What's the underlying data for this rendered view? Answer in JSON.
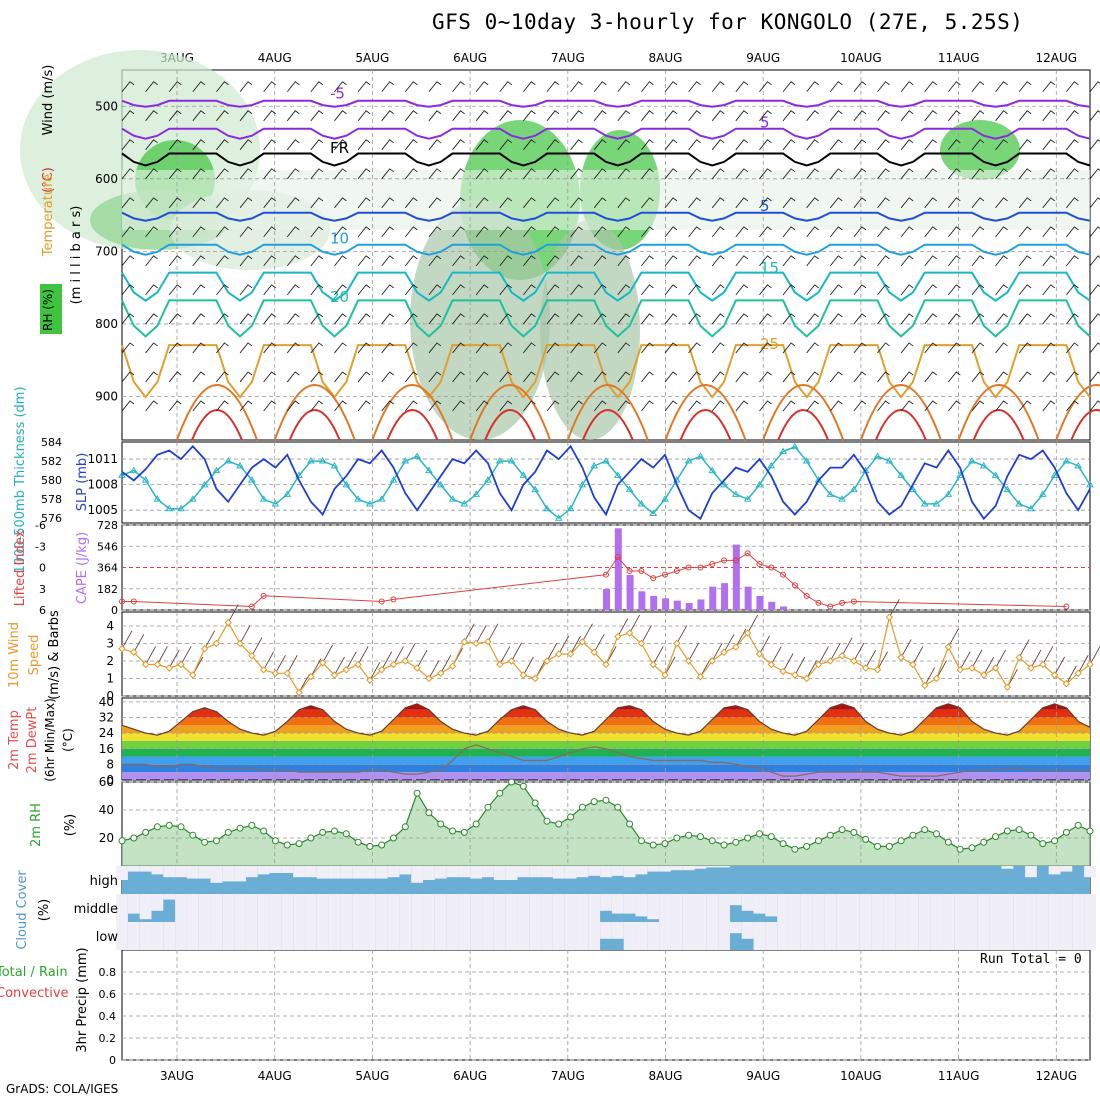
{
  "title": "GFS 0~10day 3-hourly for KONGOLO (27E, 5.25S)",
  "credit": "GrADS: COLA/IGES",
  "run_total": "Run Total = 0",
  "colors": {
    "purple": "#8a2be2",
    "blue": "#1f4fd8",
    "cyan": "#29b6d6",
    "teal": "#20c0a0",
    "orange": "#e69a2a",
    "red": "#e0302a",
    "green": "#2aa52a",
    "cloud": "#6aaed6",
    "rh_green": "#3ec43e"
  },
  "chart_data": [
    {
      "type": "line",
      "name": "upper-air cross section",
      "x": [
        "3AUG",
        "4AUG",
        "5AUG",
        "6AUG",
        "7AUG",
        "8AUG",
        "9AUG",
        "10AUG",
        "11AUG",
        "12AUG"
      ],
      "ylabel_parts": [
        "RH (%)",
        "Temperature",
        "(°C)",
        "Wind (m/s)"
      ],
      "ylabel_axis": "(m i l l i b a r s)",
      "y_ticks": [
        500,
        600,
        700,
        800,
        900
      ],
      "ylim": [
        960,
        450
      ],
      "temperature_contours": [
        {
          "value": -5,
          "label": "-5",
          "color": "#8a2be2"
        },
        {
          "value": 5,
          "label": "5",
          "color": "#8a2be2"
        },
        {
          "value": "FR",
          "label": "FR",
          "color": "#000000"
        },
        {
          "value": 5,
          "label": "5",
          "color": "#1f4fd8"
        },
        {
          "value": 10,
          "label": "10",
          "color": "#1ea0e0"
        },
        {
          "value": 15,
          "label": "15",
          "color": "#18b8c8"
        },
        {
          "value": 20,
          "label": "20",
          "color": "#20c0a0"
        },
        {
          "value": 25,
          "label": "25",
          "color": "#e0a030"
        }
      ]
    },
    {
      "type": "line",
      "name": "thickness and SLP",
      "ylabel_left": "1000-500mb Thickness (dm)",
      "ylabel_right": "SLP (mb)",
      "thickness_ticks": [
        576,
        578,
        580,
        582,
        584
      ],
      "slp_ticks": [
        1005,
        1008,
        1011
      ],
      "slp_ylim": [
        1003.5,
        1013
      ],
      "thickness_ylim": [
        575.5,
        584
      ],
      "slp_series": {
        "name": "SLP",
        "color": "#1f3fd0",
        "values": [
          1009.5,
          1008.5,
          1009.8,
          1011.5,
          1012.0,
          1011.0,
          1012.5,
          1011.0,
          1007.5,
          1006.0,
          1008.0,
          1010.0,
          1011.0,
          1010.0,
          1011.5,
          1008.5,
          1006.0,
          1004.5,
          1007.5,
          1009.0,
          1011.0,
          1010.5,
          1012.0,
          1010.0,
          1007.0,
          1005.0,
          1007.0,
          1009.0,
          1011.0,
          1010.5,
          1012.0,
          1010.5,
          1007.0,
          1005.0,
          1008.0,
          1009.5,
          1012.0,
          1011.0,
          1012.5,
          1010.0,
          1006.5,
          1004.5,
          1008.0,
          1009.5,
          1011.0,
          1010.0,
          1011.5,
          1008.0,
          1005.0,
          1004.0,
          1007.0,
          1008.5,
          1010.0,
          1009.5,
          1011.0,
          1009.0,
          1006.0,
          1004.5,
          1006.0,
          1008.5,
          1010.0,
          1010.0,
          1011.5,
          1009.5,
          1006.0,
          1004.5,
          1005.5,
          1008.0,
          1010.5,
          1010.0,
          1012.0,
          1010.0,
          1006.0,
          1004.0,
          1005.5,
          1009.0,
          1011.5,
          1011.0,
          1012.0,
          1010.0,
          1007.0,
          1005.0,
          1007.5
        ]
      },
      "thickness_series": {
        "name": "Thickness",
        "color": "#29b6c6",
        "values": [
          580.5,
          581.0,
          580.0,
          578.0,
          577.0,
          577.0,
          578.0,
          579.5,
          581.0,
          582.0,
          581.5,
          580.0,
          578.0,
          577.5,
          578.5,
          580.5,
          582.0,
          582.0,
          581.5,
          579.5,
          578.0,
          577.5,
          578.0,
          580.0,
          582.0,
          582.5,
          581.0,
          579.5,
          578.0,
          577.5,
          578.5,
          580.0,
          582.0,
          582.0,
          580.5,
          579.0,
          577.0,
          576.0,
          577.0,
          579.5,
          581.5,
          582.0,
          580.5,
          579.0,
          577.5,
          576.5,
          578.0,
          580.0,
          582.0,
          582.5,
          581.0,
          579.5,
          578.5,
          578.0,
          579.5,
          581.5,
          583.0,
          583.5,
          582.0,
          580.0,
          578.5,
          578.0,
          579.0,
          581.0,
          582.5,
          582.0,
          580.5,
          579.0,
          577.5,
          577.5,
          578.5,
          580.5,
          582.0,
          581.5,
          580.5,
          579.0,
          577.5,
          577.0,
          578.5,
          580.5,
          582.0,
          581.5,
          579.5
        ]
      }
    },
    {
      "type": "bar",
      "name": "lifted index and CAPE",
      "ylabel_left": "Lifted Index",
      "ylabel_right": "CAPE (J/kg)",
      "li_ticks": [
        6,
        3,
        0,
        -3,
        -6
      ],
      "cape_ticks": [
        0,
        182,
        364,
        546,
        728
      ],
      "cape_ylim": [
        0,
        728
      ],
      "li_ylim": [
        6,
        -6
      ],
      "cape_values": [
        0,
        0,
        0,
        0,
        0,
        0,
        0,
        0,
        0,
        0,
        0,
        0,
        0,
        0,
        0,
        0,
        0,
        0,
        0,
        0,
        0,
        0,
        0,
        0,
        0,
        0,
        0,
        0,
        0,
        0,
        0,
        0,
        0,
        0,
        0,
        0,
        0,
        0,
        0,
        0,
        0,
        180,
        700,
        300,
        160,
        120,
        100,
        80,
        60,
        90,
        200,
        230,
        560,
        200,
        120,
        70,
        30,
        0,
        0,
        0,
        0,
        0,
        0,
        0,
        0,
        0,
        0,
        0,
        0,
        0,
        0,
        0,
        0,
        0,
        0,
        0,
        0,
        0,
        0,
        0,
        0,
        0,
        0
      ],
      "li_values": [
        4.8,
        4.8,
        null,
        null,
        null,
        null,
        null,
        null,
        null,
        null,
        null,
        5.5,
        4.0,
        null,
        null,
        null,
        null,
        null,
        null,
        null,
        null,
        null,
        4.8,
        4.5,
        null,
        null,
        null,
        null,
        null,
        null,
        null,
        null,
        null,
        null,
        null,
        null,
        null,
        null,
        null,
        null,
        null,
        1.0,
        -1.5,
        0.5,
        0.5,
        1.5,
        1.0,
        0.5,
        0.0,
        0.0,
        -0.5,
        -1.0,
        -1.0,
        -2.0,
        -0.5,
        0.0,
        1.0,
        2.5,
        4.0,
        5.0,
        5.5,
        5.0,
        4.8,
        null,
        null,
        null,
        null,
        null,
        null,
        null,
        null,
        null,
        null,
        null,
        null,
        null,
        null,
        null,
        null,
        null,
        5.5,
        null,
        null
      ]
    },
    {
      "type": "line",
      "name": "10m wind",
      "ylabel_parts": [
        "10m Wind",
        "Speed",
        "(m/s) & Barbs"
      ],
      "y_ticks": [
        0,
        1,
        2,
        3,
        4
      ],
      "ylim": [
        0,
        4.8
      ],
      "series": [
        {
          "name": "wind speed",
          "color": "#e69a2a",
          "values": [
            2.7,
            2.5,
            1.8,
            1.8,
            1.6,
            1.8,
            1.2,
            2.7,
            3.0,
            4.2,
            3.0,
            2.3,
            1.5,
            1.3,
            1.3,
            0.2,
            1.1,
            1.9,
            1.2,
            1.5,
            1.8,
            0.9,
            1.5,
            1.8,
            2.0,
            1.6,
            1.0,
            1.3,
            1.7,
            3.1,
            3.0,
            3.1,
            1.8,
            2.0,
            1.2,
            1.0,
            2.0,
            2.4,
            2.4,
            3.1,
            2.5,
            1.8,
            3.4,
            3.6,
            3.0,
            1.8,
            1.2,
            3.0,
            2.0,
            1.1,
            2.0,
            2.5,
            2.8,
            3.6,
            2.4,
            1.8,
            1.4,
            1.2,
            1.0,
            1.8,
            2.0,
            2.3,
            2.0,
            1.6,
            1.5,
            4.5,
            2.2,
            1.8,
            0.6,
            1.0,
            2.8,
            1.5,
            1.6,
            1.2,
            1.6,
            0.5,
            2.2,
            1.6,
            1.8,
            1.2,
            0.7,
            1.3,
            1.8
          ]
        }
      ]
    },
    {
      "type": "area",
      "name": "2m temperature",
      "ylabel_parts": [
        "2m Temp",
        "2m DewPt",
        "(6hr Min/Max)",
        "(°C)"
      ],
      "y_ticks": [
        0,
        8,
        16,
        24,
        32,
        40
      ],
      "ylim": [
        0,
        42
      ],
      "temp_values": [
        28,
        26,
        24,
        23,
        25,
        30,
        35,
        37,
        35,
        30,
        26,
        24,
        23,
        25,
        30,
        36,
        38,
        36,
        30,
        26,
        24,
        23,
        25,
        31,
        37,
        39,
        36,
        30,
        26,
        24,
        23,
        25,
        31,
        36,
        38,
        36,
        30,
        26,
        24,
        23,
        25,
        31,
        37,
        38,
        36,
        30,
        26,
        24,
        23,
        25,
        31,
        37,
        38,
        36,
        30,
        26,
        24,
        23,
        25,
        31,
        37,
        39,
        37,
        30,
        26,
        24,
        23,
        25,
        31,
        37,
        39,
        37,
        30,
        26,
        24,
        23,
        25,
        31,
        37,
        39,
        37,
        30,
        27
      ],
      "dewpoint_values": [
        8,
        8,
        8,
        7,
        7,
        8,
        8,
        7,
        6,
        6,
        6,
        6,
        5,
        5,
        5,
        4,
        4,
        4,
        4,
        4,
        4,
        5,
        5,
        4,
        3,
        3,
        4,
        5,
        10,
        16,
        18,
        16,
        14,
        12,
        10,
        10,
        10,
        12,
        14,
        16,
        17,
        16,
        14,
        12,
        11,
        10,
        10,
        10,
        10,
        10,
        9,
        9,
        8,
        7,
        6,
        4,
        2,
        2,
        3,
        4,
        4,
        4,
        4,
        4,
        4,
        3,
        2,
        2,
        2,
        2,
        3,
        4,
        5,
        5,
        5,
        6,
        6,
        5,
        5,
        5,
        5,
        5,
        5
      ]
    },
    {
      "type": "area",
      "name": "2m RH",
      "ylabel_parts": [
        "2m RH",
        "(%)"
      ],
      "y_ticks": [
        20,
        40,
        60
      ],
      "ylim": [
        0,
        60
      ],
      "values": [
        18,
        20,
        24,
        28,
        29,
        28,
        22,
        17,
        18,
        24,
        27,
        29,
        25,
        18,
        15,
        16,
        20,
        24,
        25,
        23,
        17,
        14,
        15,
        20,
        28,
        52,
        38,
        30,
        25,
        24,
        30,
        42,
        52,
        60,
        57,
        45,
        32,
        30,
        35,
        42,
        46,
        47,
        42,
        30,
        18,
        15,
        16,
        20,
        22,
        21,
        18,
        15,
        17,
        20,
        23,
        21,
        16,
        12,
        14,
        18,
        22,
        26,
        24,
        19,
        14,
        14,
        18,
        22,
        26,
        23,
        17,
        12,
        13,
        17,
        21,
        25,
        26,
        22,
        16,
        18,
        24,
        29,
        25
      ]
    },
    {
      "type": "heatmap",
      "name": "cloud cover",
      "ylabel_parts": [
        "Cloud Cover",
        "(%)"
      ],
      "levels": [
        "high",
        "middle",
        "low"
      ],
      "high": [
        50,
        80,
        80,
        70,
        60,
        60,
        55,
        55,
        40,
        45,
        45,
        60,
        70,
        75,
        75,
        60,
        60,
        55,
        55,
        55,
        55,
        55,
        55,
        60,
        70,
        40,
        50,
        55,
        60,
        60,
        55,
        60,
        50,
        50,
        60,
        60,
        60,
        55,
        55,
        60,
        65,
        60,
        65,
        60,
        70,
        80,
        80,
        85,
        85,
        90,
        95,
        95,
        100,
        100,
        100,
        100,
        100,
        100,
        100,
        100,
        100,
        100,
        100,
        100,
        100,
        100,
        100,
        100,
        100,
        100,
        100,
        100,
        100,
        100,
        100,
        90,
        100,
        60,
        100,
        70,
        80,
        100,
        60
      ],
      "middle": [
        0,
        30,
        10,
        40,
        80,
        0,
        0,
        0,
        0,
        0,
        0,
        0,
        0,
        0,
        0,
        0,
        0,
        0,
        0,
        0,
        0,
        0,
        0,
        0,
        0,
        0,
        0,
        0,
        0,
        0,
        0,
        0,
        0,
        0,
        0,
        0,
        0,
        0,
        0,
        0,
        0,
        40,
        30,
        30,
        20,
        10,
        0,
        0,
        0,
        0,
        0,
        0,
        60,
        40,
        30,
        20,
        0,
        0,
        0,
        0,
        0,
        0,
        0,
        0,
        0,
        0,
        0,
        0,
        0,
        0,
        0,
        0,
        0,
        0,
        0,
        0,
        0,
        0,
        0,
        0,
        0,
        0,
        0
      ],
      "low": [
        0,
        0,
        0,
        0,
        0,
        0,
        0,
        0,
        0,
        0,
        0,
        0,
        0,
        0,
        0,
        0,
        0,
        0,
        0,
        0,
        0,
        0,
        0,
        0,
        0,
        0,
        0,
        0,
        0,
        0,
        0,
        0,
        0,
        0,
        0,
        0,
        0,
        0,
        0,
        0,
        0,
        40,
        40,
        0,
        0,
        0,
        0,
        0,
        0,
        0,
        0,
        0,
        60,
        40,
        0,
        0,
        0,
        0,
        0,
        0,
        0,
        0,
        0,
        0,
        0,
        0,
        0,
        0,
        0,
        0,
        0,
        0,
        0,
        0,
        0,
        0,
        0,
        0,
        0,
        0,
        0,
        0,
        0
      ]
    },
    {
      "type": "bar",
      "name": "3hr precip",
      "ylabel_parts": [
        "Total / Rain",
        "Convective",
        "3hr Precip (mm)"
      ],
      "y_ticks": [
        0,
        0.2,
        0.4,
        0.6,
        0.8
      ],
      "ylim": [
        0,
        1.0
      ],
      "values": []
    }
  ]
}
